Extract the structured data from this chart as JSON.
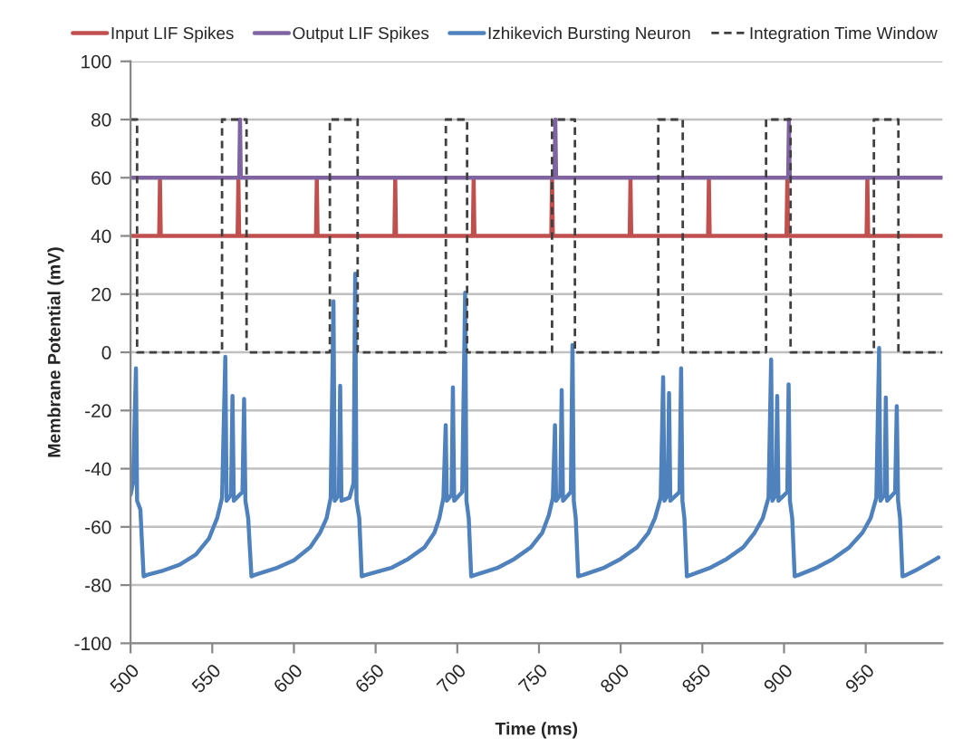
{
  "chart_data": {
    "type": "line",
    "xlabel": "Time (ms)",
    "ylabel": "Membrane Potential (mV)",
    "xlim": [
      500,
      997
    ],
    "xticks": [
      500,
      550,
      600,
      650,
      700,
      750,
      800,
      850,
      900,
      950
    ],
    "ylim": [
      -100,
      100
    ],
    "yticks": [
      -100,
      -80,
      -60,
      -40,
      -20,
      0,
      20,
      40,
      60,
      80,
      100
    ],
    "grid": "y",
    "legend": "top",
    "marker": "none",
    "series": [
      {
        "name": "Input LIF Spikes",
        "color": "#c0504d",
        "line_style": "solid",
        "x": [
          500,
          517.5,
          518,
          518.5,
          565.5,
          566,
          566.5,
          613.5,
          614,
          614.5,
          661.5,
          662,
          662.5,
          709.5,
          710,
          710.5,
          757.5,
          758,
          758.5,
          805.5,
          806,
          806.5,
          853.5,
          854,
          854.5,
          901.5,
          902,
          902.5,
          950.5,
          951,
          951.5,
          997
        ],
        "values": [
          40,
          40,
          60,
          40,
          40,
          60,
          40,
          40,
          60,
          40,
          40,
          60,
          40,
          40,
          60,
          40,
          40,
          60,
          40,
          40,
          60,
          40,
          40,
          60,
          40,
          40,
          60,
          40,
          40,
          60,
          40,
          40
        ]
      },
      {
        "name": "Output LIF Spikes",
        "color": "#8064a2",
        "line_style": "solid",
        "x": [
          500,
          566.5,
          567,
          567.5,
          759.5,
          760,
          760.5,
          902.5,
          903,
          903.5,
          997
        ],
        "values": [
          60,
          60,
          80,
          60,
          60,
          80,
          60,
          60,
          80,
          60,
          60
        ]
      },
      {
        "name": "Izhikevich Bursting Neuron",
        "color": "#4f81bd",
        "line_style": "solid",
        "x": [
          500,
          501.5,
          503.3,
          504,
          506,
          508,
          510,
          520,
          530,
          540,
          548,
          553,
          556,
          558,
          558.8,
          561.5,
          562.4,
          563.2,
          568.5,
          569.5,
          570.3,
          572,
          574,
          576,
          590,
          600,
          610,
          616,
          620,
          622.5,
          624.2,
          625,
          627.5,
          628.3,
          629.1,
          634,
          636.5,
          637.5,
          638.3,
          640,
          641.5,
          644,
          660,
          670,
          680,
          686,
          689,
          691.5,
          692.9,
          693.6,
          696.5,
          697.3,
          698.1,
          703,
          704.8,
          705.6,
          707,
          708.5,
          711,
          725,
          735,
          745,
          752,
          756,
          758.5,
          759.8,
          760.5,
          763,
          763.9,
          764.7,
          769.5,
          770.5,
          771.3,
          772.5,
          774,
          777,
          790,
          800,
          810,
          817,
          821,
          824.5,
          826,
          826.8,
          828.8,
          829.6,
          830.4,
          836,
          837,
          837.8,
          839,
          840.5,
          843,
          855,
          865,
          875,
          882,
          887,
          890.5,
          892.1,
          892.9,
          895,
          895.8,
          896.6,
          902,
          902.8,
          903.6,
          905,
          906.5,
          909,
          920,
          930,
          940,
          948,
          953,
          956.5,
          958.2,
          959,
          961.5,
          962.3,
          963.1,
          968,
          969,
          969.8,
          971,
          972.5,
          975,
          982,
          990,
          994.5
        ],
        "values": [
          -49,
          -45,
          -5.5,
          -51,
          -54,
          -77,
          -76.5,
          -75,
          -73,
          -69.5,
          -64,
          -57,
          -50,
          -1.5,
          -51,
          -49,
          -15,
          -51,
          -48,
          -16,
          -51,
          -57,
          -77,
          -76.5,
          -74,
          -71.5,
          -67,
          -62,
          -57,
          -50,
          17.5,
          -51,
          -49,
          -11.5,
          -51,
          -50,
          -45,
          27,
          -51,
          -57,
          -77,
          -76.5,
          -74,
          -71,
          -67,
          -62,
          -57,
          -50,
          -25,
          -51,
          -49,
          -12,
          -51,
          -48,
          20.5,
          -51,
          -57,
          -77,
          -76.5,
          -74,
          -71,
          -67,
          -62,
          -56,
          -50,
          -25,
          -51,
          -49,
          -13,
          -51,
          -48,
          2.5,
          -51,
          -57,
          -77,
          -76.5,
          -74,
          -71,
          -67,
          -62,
          -57,
          -50,
          -8.5,
          -51,
          -49,
          -14,
          -51,
          -48,
          -5.5,
          -51,
          -57,
          -77,
          -76.5,
          -74,
          -71,
          -67,
          -62,
          -57,
          -50,
          -2.5,
          -51,
          -49,
          -15,
          -51,
          -48,
          -11,
          -51,
          -57,
          -77,
          -76.5,
          -74,
          -71,
          -67,
          -62,
          -57,
          -50,
          1.5,
          -51,
          -49,
          -15.5,
          -51,
          -48,
          -18.5,
          -51,
          -57,
          -77,
          -76.5,
          -74.5,
          -72,
          -70.5
        ]
      },
      {
        "name": "Integration Time Window",
        "color": "#404040",
        "line_style": "dashed",
        "x": [
          500,
          504,
          504,
          556,
          556,
          571,
          571,
          622,
          622,
          639,
          639,
          693,
          693,
          706,
          706,
          758,
          758,
          772,
          772,
          823,
          823,
          838,
          838,
          889,
          889,
          904,
          904,
          955,
          955,
          970,
          970,
          997
        ],
        "values": [
          80,
          80,
          0,
          0,
          80,
          80,
          0,
          0,
          80,
          80,
          0,
          0,
          80,
          80,
          0,
          0,
          80,
          80,
          0,
          0,
          80,
          80,
          0,
          0,
          80,
          80,
          0,
          0,
          80,
          80,
          0,
          0
        ]
      }
    ]
  }
}
